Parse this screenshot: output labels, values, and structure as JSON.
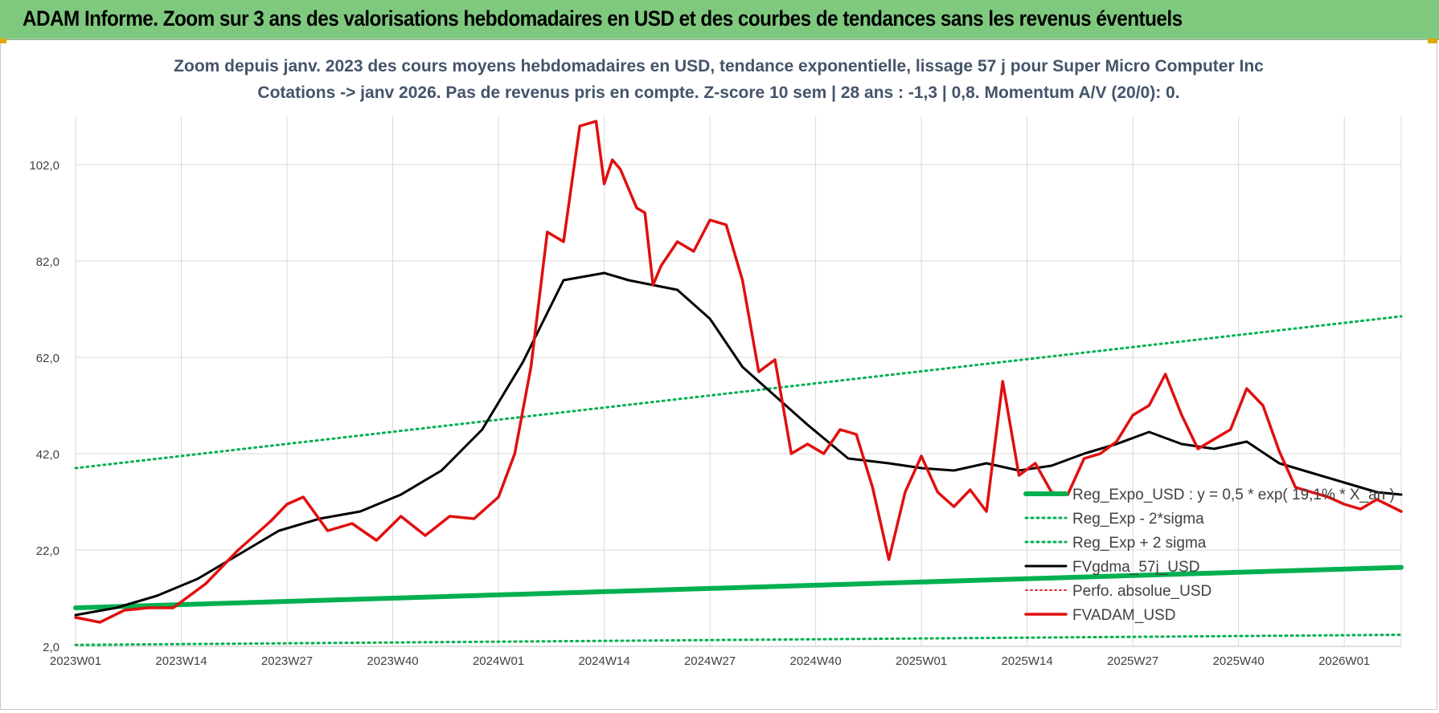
{
  "header": {
    "title": "ADAM Informe. Zoom sur 3 ans des valorisations hebdomadaires en USD et des courbes de tendances sans les revenus éventuels"
  },
  "chart_data": {
    "type": "line",
    "title_line1": "Zoom depuis janv. 2023 des cours moyens hebdomadaires en USD, tendance exponentielle, lissage 57 j pour Super Micro Computer Inc",
    "title_line2": "Cotations -> janv 2026. Pas de revenus pris en compte. Z-score 10 sem  | 28 ans : -1,3 | 0,8. Momentum A/V (20/0): 0.",
    "xlabel": "",
    "ylabel": "",
    "ylim": [
      2,
      112
    ],
    "yticks": [
      "102,0",
      "82,0",
      "62,0",
      "42,0",
      "22,0",
      "2,0"
    ],
    "x_tick_labels": [
      "2023W01",
      "2023W14",
      "2023W27",
      "2023W40",
      "2024W01",
      "2024W14",
      "2024W27",
      "2024W40",
      "2025W01",
      "2025W14",
      "2025W27",
      "2025W40",
      "2026W01"
    ],
    "x_range": [
      0,
      163
    ],
    "grid": true,
    "legend_placement": "right",
    "colors": {
      "reg_expo": "#00b050",
      "reg_minus": "#00b050",
      "reg_plus": "#00b050",
      "gdma": "#000000",
      "perfo": "#e03030",
      "fvadam": "#e01010"
    },
    "series": [
      {
        "name": "Reg_Expo_USD : y = 0,5 * exp( 19,1% * X_an )",
        "x": [
          0,
          163
        ],
        "values": [
          10.0,
          18.4
        ]
      },
      {
        "name": "Reg_Exp - 2*sigma",
        "x": [
          0,
          163
        ],
        "values": [
          2.3,
          4.4
        ]
      },
      {
        "name": "Reg_Exp + 2 sigma",
        "x": [
          0,
          163
        ],
        "values": [
          39.0,
          70.5
        ]
      },
      {
        "name": "FVgdma_57j_USD",
        "x": [
          0,
          5,
          10,
          15,
          20,
          25,
          30,
          35,
          40,
          45,
          50,
          55,
          60,
          65,
          68,
          71,
          74,
          78,
          82,
          86,
          90,
          95,
          100,
          104,
          108,
          112,
          116,
          120,
          124,
          128,
          132,
          136,
          140,
          144,
          148,
          152,
          156,
          160,
          163
        ],
        "values": [
          8.5,
          10.0,
          12.5,
          16.0,
          21.0,
          26.0,
          28.5,
          30.0,
          33.5,
          38.5,
          47.0,
          61.0,
          78.0,
          79.5,
          78.0,
          77.0,
          76.0,
          70.0,
          60.0,
          54.0,
          48.0,
          41.0,
          40.0,
          39.0,
          38.5,
          40.0,
          38.5,
          39.5,
          42.0,
          44.0,
          46.5,
          44.0,
          43.0,
          44.5,
          40.0,
          38.0,
          36.0,
          34.0,
          33.5
        ]
      },
      {
        "name": "Perfo. absolue_USD",
        "x": [],
        "values": []
      },
      {
        "name": "FVADAM_USD",
        "x": [
          0,
          3,
          6,
          9,
          12,
          16,
          20,
          22,
          24,
          26,
          28,
          31,
          34,
          37,
          40,
          43,
          46,
          49,
          52,
          54,
          56,
          58,
          60,
          62,
          64,
          65,
          66,
          67,
          68,
          69,
          70,
          71,
          72,
          74,
          76,
          78,
          80,
          82,
          84,
          86,
          88,
          90,
          92,
          94,
          96,
          98,
          100,
          102,
          104,
          106,
          108,
          110,
          112,
          114,
          116,
          118,
          120,
          122,
          124,
          126,
          128,
          130,
          132,
          134,
          136,
          138,
          140,
          142,
          144,
          146,
          148,
          150,
          152,
          154,
          156,
          158,
          160,
          163
        ],
        "values": [
          8.0,
          7.0,
          9.5,
          10.0,
          10.0,
          15.0,
          22.0,
          25.0,
          28.0,
          31.5,
          33.0,
          26.0,
          27.5,
          24.0,
          29.0,
          25.0,
          29.0,
          28.5,
          33.0,
          42.0,
          60.0,
          88.0,
          86.0,
          110.0,
          111.0,
          98.0,
          103.0,
          101.0,
          97.0,
          93.0,
          92.0,
          77.0,
          81.0,
          86.0,
          84.0,
          90.5,
          89.5,
          78.0,
          59.0,
          61.5,
          42.0,
          44.0,
          42.0,
          47.0,
          46.0,
          35.0,
          20.0,
          34.0,
          41.5,
          34.0,
          31.0,
          34.5,
          30.0,
          57.0,
          37.5,
          40.0,
          34.0,
          33.5,
          41.0,
          42.0,
          44.5,
          50.0,
          52.0,
          58.5,
          50.0,
          43.0,
          45.0,
          47.0,
          55.5,
          52.0,
          42.5,
          35.0,
          34.0,
          33.0,
          31.5,
          30.5,
          32.5,
          30.0
        ]
      }
    ]
  }
}
